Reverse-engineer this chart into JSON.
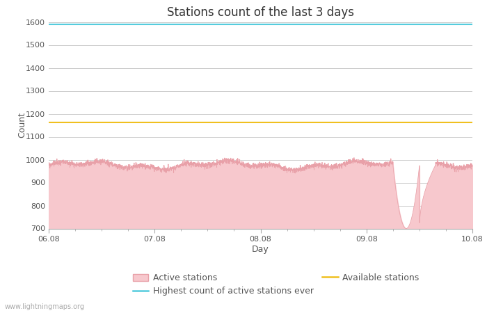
{
  "title": "Stations count of the last 3 days",
  "xlabel": "Day",
  "ylabel": "Count",
  "ylim": [
    700,
    1600
  ],
  "yticks": [
    700,
    800,
    900,
    1000,
    1100,
    1200,
    1300,
    1400,
    1500,
    1600
  ],
  "x_start": 0.0,
  "x_end": 4.0,
  "x_tick_positions": [
    0,
    1,
    2,
    3,
    4
  ],
  "x_tick_labels": [
    "06.08",
    "07.08",
    "08.08",
    "09.08",
    "10.08"
  ],
  "active_stations_value": 975,
  "highest_count_ever": 1590,
  "available_stations": 1162,
  "fill_color": "#f7c8cd",
  "line_color": "#e8a0a8",
  "highest_line_color": "#55ccdd",
  "available_line_color": "#f0c020",
  "background_color": "#ffffff",
  "grid_color": "#cccccc",
  "watermark": "www.lightningmaps.org",
  "legend_labels": [
    "Active stations",
    "Highest count of active stations ever",
    "Available stations"
  ],
  "title_fontsize": 12,
  "axis_fontsize": 9,
  "tick_fontsize": 8,
  "watermark_fontsize": 7,
  "dip_start": 3.25,
  "dip_end": 3.5,
  "dip_min": 700
}
